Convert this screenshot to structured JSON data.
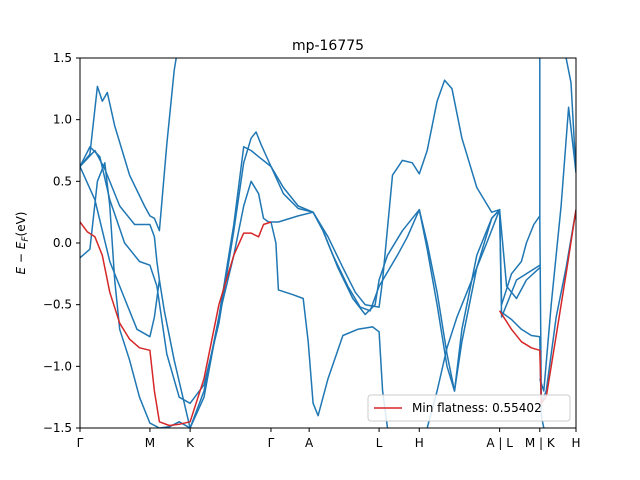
{
  "chart_data": {
    "type": "line",
    "title": "mp-16775",
    "ylabel": "E − E_F (eV)",
    "ylabel_main": "E − E",
    "ylabel_sub": "F",
    "ylabel_unit": "(eV)",
    "xlabel": "",
    "ylim": [
      -1.5,
      1.5
    ],
    "xlim": [
      0,
      1
    ],
    "yticks": [
      {
        "value": 1.5,
        "label": "1.5"
      },
      {
        "value": 1.0,
        "label": "1.0"
      },
      {
        "value": 0.5,
        "label": "0.5"
      },
      {
        "value": 0.0,
        "label": "0.0"
      },
      {
        "value": -0.5,
        "label": "−0.5"
      },
      {
        "value": -1.0,
        "label": "−1.0"
      },
      {
        "value": -1.5,
        "label": "−1.5"
      }
    ],
    "xticks": [
      {
        "value": 0.0,
        "label": "Γ"
      },
      {
        "value": 0.141,
        "label": "M"
      },
      {
        "value": 0.222,
        "label": "K"
      },
      {
        "value": 0.385,
        "label": "Γ"
      },
      {
        "value": 0.462,
        "label": "A"
      },
      {
        "value": 0.603,
        "label": "L"
      },
      {
        "value": 0.684,
        "label": "H"
      },
      {
        "value": 0.846,
        "label": "A | L"
      },
      {
        "value": 0.927,
        "label": "M | K"
      },
      {
        "value": 1.0,
        "label": "H"
      }
    ],
    "grid": false,
    "legend": {
      "position": "bottom-right",
      "label": "Min flatness: 0.55402",
      "color": "#d62728"
    },
    "band_color": "#1f77b4",
    "highlight_color": "#d62728",
    "series": [
      {
        "band": 1,
        "points": [
          [
            0.0,
            0.62
          ],
          [
            0.02,
            0.72
          ],
          [
            0.035,
            1.27
          ],
          [
            0.045,
            1.15
          ],
          [
            0.055,
            1.22
          ],
          [
            0.07,
            0.95
          ],
          [
            0.1,
            0.55
          ],
          [
            0.13,
            0.3
          ],
          [
            0.141,
            0.22
          ],
          [
            0.15,
            0.2
          ],
          [
            0.16,
            0.1
          ],
          [
            0.175,
            0.8
          ],
          [
            0.19,
            1.4
          ],
          [
            0.194,
            1.5
          ]
        ]
      },
      {
        "band": 2,
        "points": [
          [
            0.0,
            0.62
          ],
          [
            0.02,
            0.78
          ],
          [
            0.04,
            0.7
          ],
          [
            0.06,
            0.35
          ],
          [
            0.09,
            0.0
          ],
          [
            0.12,
            -0.15
          ],
          [
            0.141,
            -0.18
          ],
          [
            0.155,
            -0.35
          ],
          [
            0.175,
            -0.9
          ],
          [
            0.2,
            -1.25
          ],
          [
            0.222,
            -1.3
          ],
          [
            0.25,
            -1.15
          ],
          [
            0.28,
            -0.65
          ],
          [
            0.31,
            0.1
          ],
          [
            0.33,
            0.65
          ],
          [
            0.345,
            0.85
          ],
          [
            0.355,
            0.9
          ],
          [
            0.365,
            0.8
          ],
          [
            0.385,
            0.62
          ],
          [
            0.41,
            0.4
          ],
          [
            0.44,
            0.28
          ],
          [
            0.47,
            0.25
          ],
          [
            0.5,
            0.05
          ],
          [
            0.53,
            -0.2
          ],
          [
            0.555,
            -0.4
          ],
          [
            0.575,
            -0.5
          ],
          [
            0.603,
            -0.52
          ],
          [
            0.61,
            -0.3
          ],
          [
            0.63,
            0.55
          ],
          [
            0.65,
            0.67
          ],
          [
            0.67,
            0.65
          ],
          [
            0.684,
            0.56
          ],
          [
            0.7,
            0.75
          ],
          [
            0.72,
            1.15
          ],
          [
            0.735,
            1.32
          ],
          [
            0.75,
            1.25
          ],
          [
            0.77,
            0.85
          ],
          [
            0.8,
            0.45
          ],
          [
            0.83,
            0.25
          ],
          [
            0.846,
            0.27
          ],
          [
            0.86,
            -0.35
          ],
          [
            0.88,
            -0.45
          ],
          [
            0.9,
            -0.3
          ],
          [
            0.927,
            -0.2
          ]
        ]
      },
      {
        "band": 3,
        "points": [
          [
            0.0,
            0.62
          ],
          [
            0.03,
            0.75
          ],
          [
            0.05,
            0.6
          ],
          [
            0.08,
            0.3
          ],
          [
            0.11,
            0.15
          ],
          [
            0.141,
            0.15
          ],
          [
            0.15,
            0.05
          ],
          [
            0.155,
            -0.15
          ],
          [
            0.16,
            -0.3
          ],
          [
            0.17,
            -0.55
          ],
          [
            0.19,
            -0.95
          ],
          [
            0.222,
            -1.5
          ]
        ]
      },
      {
        "band": 4,
        "points": [
          [
            0.222,
            -1.5
          ],
          [
            0.25,
            -1.25
          ],
          [
            0.28,
            -0.6
          ],
          [
            0.31,
            0.15
          ],
          [
            0.33,
            0.78
          ],
          [
            0.345,
            0.75
          ],
          [
            0.36,
            0.7
          ],
          [
            0.385,
            0.62
          ],
          [
            0.41,
            0.45
          ],
          [
            0.44,
            0.3
          ],
          [
            0.47,
            0.25
          ],
          [
            0.49,
            0.1
          ],
          [
            0.51,
            -0.1
          ],
          [
            0.54,
            -0.35
          ],
          [
            0.565,
            -0.52
          ],
          [
            0.585,
            -0.55
          ],
          [
            0.603,
            -0.35
          ],
          [
            0.64,
            -0.1
          ],
          [
            0.66,
            0.05
          ],
          [
            0.684,
            0.27
          ],
          [
            0.7,
            0.0
          ],
          [
            0.72,
            -0.4
          ],
          [
            0.74,
            -0.9
          ],
          [
            0.755,
            -1.2
          ],
          [
            0.77,
            -0.8
          ],
          [
            0.8,
            -0.2
          ],
          [
            0.83,
            0.2
          ],
          [
            0.846,
            0.27
          ],
          [
            0.85,
            -0.5
          ],
          [
            0.87,
            -0.25
          ],
          [
            0.89,
            -0.15
          ],
          [
            0.9,
            0.0
          ],
          [
            0.915,
            0.15
          ],
          [
            0.927,
            0.22
          ]
        ]
      },
      {
        "band": 5,
        "points": [
          [
            0.0,
            0.62
          ],
          [
            0.03,
            0.35
          ],
          [
            0.06,
            -0.15
          ],
          [
            0.09,
            -0.45
          ],
          [
            0.115,
            -0.7
          ],
          [
            0.141,
            -0.76
          ],
          [
            0.15,
            -0.6
          ],
          [
            0.16,
            -0.3
          ]
        ]
      },
      {
        "band": 6,
        "points": [
          [
            0.0,
            -0.12
          ],
          [
            0.02,
            -0.05
          ],
          [
            0.035,
            0.5
          ],
          [
            0.05,
            0.65
          ],
          [
            0.06,
            0.3
          ],
          [
            0.07,
            -0.3
          ],
          [
            0.08,
            -0.7
          ],
          [
            0.1,
            -0.95
          ],
          [
            0.12,
            -1.25
          ],
          [
            0.141,
            -1.46
          ],
          [
            0.16,
            -1.5
          ],
          [
            0.18,
            -1.49
          ],
          [
            0.2,
            -1.45
          ],
          [
            0.222,
            -1.5
          ]
        ]
      },
      {
        "band": 7,
        "points": [
          [
            0.222,
            -1.5
          ],
          [
            0.25,
            -1.2
          ],
          [
            0.28,
            -0.6
          ],
          [
            0.31,
            -0.1
          ],
          [
            0.33,
            0.3
          ],
          [
            0.345,
            0.5
          ],
          [
            0.36,
            0.4
          ],
          [
            0.37,
            0.2
          ],
          [
            0.38,
            0.17
          ],
          [
            0.4,
            0.17
          ],
          [
            0.44,
            0.22
          ],
          [
            0.47,
            0.25
          ],
          [
            0.49,
            0.1
          ],
          [
            0.52,
            -0.2
          ],
          [
            0.55,
            -0.45
          ],
          [
            0.575,
            -0.58
          ],
          [
            0.595,
            -0.5
          ],
          [
            0.603,
            -0.3
          ],
          [
            0.62,
            -0.1
          ],
          [
            0.65,
            0.1
          ],
          [
            0.684,
            0.27
          ],
          [
            0.7,
            -0.05
          ],
          [
            0.72,
            -0.5
          ],
          [
            0.74,
            -1.0
          ],
          [
            0.755,
            -1.2
          ],
          [
            0.77,
            -0.7
          ],
          [
            0.8,
            -0.1
          ],
          [
            0.83,
            0.2
          ],
          [
            0.846,
            0.27
          ]
        ]
      },
      {
        "band": 8,
        "points": [
          [
            0.385,
            0.17
          ],
          [
            0.395,
            0.0
          ],
          [
            0.4,
            -0.38
          ],
          [
            0.43,
            -0.42
          ],
          [
            0.45,
            -0.45
          ],
          [
            0.46,
            -0.8
          ],
          [
            0.47,
            -1.3
          ],
          [
            0.48,
            -1.4
          ],
          [
            0.5,
            -1.1
          ],
          [
            0.53,
            -0.75
          ],
          [
            0.56,
            -0.7
          ],
          [
            0.59,
            -0.68
          ],
          [
            0.603,
            -0.72
          ],
          [
            0.61,
            -1.2
          ],
          [
            0.62,
            -1.5
          ]
        ]
      },
      {
        "band": 9,
        "points": [
          [
            0.7,
            -1.5
          ],
          [
            0.72,
            -1.2
          ],
          [
            0.74,
            -0.85
          ],
          [
            0.76,
            -0.6
          ],
          [
            0.78,
            -0.4
          ],
          [
            0.8,
            -0.2
          ],
          [
            0.82,
            0.0
          ],
          [
            0.846,
            0.27
          ],
          [
            0.85,
            -0.6
          ],
          [
            0.86,
            -0.5
          ],
          [
            0.88,
            -0.3
          ],
          [
            0.9,
            -0.25
          ],
          [
            0.927,
            -0.18
          ]
        ]
      },
      {
        "band": 10,
        "points": [
          [
            0.846,
            -0.55
          ],
          [
            0.87,
            -0.62
          ],
          [
            0.89,
            -0.7
          ],
          [
            0.91,
            -0.75
          ],
          [
            0.927,
            -0.76
          ],
          [
            0.93,
            -1.4
          ],
          [
            0.935,
            -1.5
          ]
        ]
      },
      {
        "band": 11,
        "points": [
          [
            0.927,
            1.5
          ],
          [
            0.927,
            0.2
          ],
          [
            0.93,
            -1.3
          ],
          [
            0.94,
            -1.2
          ],
          [
            0.96,
            -0.6
          ],
          [
            0.98,
            -0.2
          ],
          [
            1.0,
            0.27
          ]
        ]
      },
      {
        "band": 12,
        "points": [
          [
            0.927,
            -1.1
          ],
          [
            0.935,
            -1.2
          ],
          [
            0.95,
            -0.5
          ],
          [
            0.97,
            0.3
          ],
          [
            0.985,
            1.1
          ],
          [
            1.0,
            0.57
          ],
          [
            0.99,
            1.3
          ],
          [
            0.98,
            1.5
          ]
        ]
      },
      {
        "band": 13,
        "name": "Min flatness: 0.55402",
        "highlight": true,
        "points": [
          [
            0.0,
            0.17
          ],
          [
            0.015,
            0.09
          ],
          [
            0.03,
            0.05
          ],
          [
            0.045,
            -0.1
          ],
          [
            0.06,
            -0.4
          ],
          [
            0.08,
            -0.65
          ],
          [
            0.1,
            -0.78
          ],
          [
            0.12,
            -0.85
          ],
          [
            0.141,
            -0.87
          ],
          [
            0.15,
            -1.2
          ],
          [
            0.16,
            -1.45
          ],
          [
            0.18,
            -1.48
          ],
          [
            0.2,
            -1.47
          ],
          [
            0.222,
            -1.45
          ],
          [
            0.25,
            -1.1
          ],
          [
            0.28,
            -0.5
          ],
          [
            0.31,
            -0.1
          ],
          [
            0.33,
            0.08
          ],
          [
            0.345,
            0.08
          ],
          [
            0.36,
            0.05
          ],
          [
            0.37,
            0.15
          ],
          [
            0.385,
            0.17
          ]
        ]
      },
      {
        "band": 14,
        "highlight": true,
        "points": [
          [
            0.846,
            -0.55
          ],
          [
            0.87,
            -0.7
          ],
          [
            0.89,
            -0.8
          ],
          [
            0.91,
            -0.85
          ],
          [
            0.927,
            -0.87
          ],
          [
            0.93,
            -1.3
          ],
          [
            0.94,
            -1.25
          ],
          [
            0.96,
            -0.75
          ],
          [
            0.98,
            -0.25
          ],
          [
            1.0,
            0.27
          ]
        ]
      }
    ]
  }
}
